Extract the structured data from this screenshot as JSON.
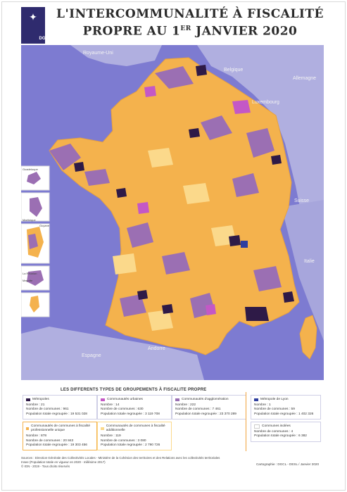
{
  "logo": {
    "text": "DGCL"
  },
  "title": {
    "line1": "L'INTERCOMMUNALITÉ À FISCALITÉ",
    "line2_a": "PROPRE AU 1",
    "line2_sup": "ER",
    "line2_b": " JANVIER 2020"
  },
  "map": {
    "colors": {
      "sea": "#7d7bd1",
      "foreign": "#b0afe0",
      "cc_unique": "#f4b24d",
      "cc_additionnelle": "#fbd98b",
      "ca": "#9b6fb3",
      "cu": "#c458c6",
      "metropole": "#2e1a47",
      "lyon": "#2f3f9f"
    },
    "countries": [
      "Royaume-Uni",
      "Belgique",
      "Allemagne",
      "Luxembourg",
      "Suisse",
      "Italie",
      "Espagne",
      "Andorre"
    ],
    "insets": [
      "Guadeloupe",
      "Martinique",
      "Guyane",
      "La Réunion",
      "Mayotte"
    ]
  },
  "legend": {
    "title": "LES DIFFERENTS TYPES DE GROUPEMENTS À FISCALITE PROPRE",
    "items": [
      {
        "name": "Métropoles",
        "l1": "Nombre : 21",
        "l2": "Nombre de communes : 961",
        "l3": "Population totale regroupée : 19 531 028"
      },
      {
        "name": "Communautés urbaines",
        "l1": "Nombre : 14",
        "l2": "Nombre de communes : 630",
        "l3": "Population totale regroupée : 3 119 708"
      },
      {
        "name": "Communautés d'agglomération",
        "l1": "Nombre : 222",
        "l2": "Nombre de communes : 7 461",
        "l3": "Population totale regroupée : 23 370 289"
      },
      {
        "name": "Métropole de Lyon",
        "l1": "Nombre : 1",
        "l2": "Nombre de communes : 59",
        "l3": "Population totale regroupée : 1 402 326"
      },
      {
        "name": "Communautés de communes à fiscalité professionnelle unique",
        "l1": "Nombre : 878",
        "l2": "Nombre de communes : 20 843",
        "l3": "Population totale regroupée : 19 303 456"
      },
      {
        "name": "Communautés de communes à fiscalité additionnelle",
        "l1": "Nombre : 119",
        "l2": "Nombre de communes : 3 080",
        "l3": "Population totale regroupée : 2 790 726"
      },
      {
        "name": "Communes isolées",
        "l1": "Nombre de communes : 4",
        "l2": "Population totale regroupée : 6 382",
        "l3": ""
      }
    ]
  },
  "sources": {
    "l1": "Sources : Direction Générale des Collectivités Locales - Ministère de la Cohésion des territoires et des Relations avec les collectivités territoriales",
    "l2": "Insee (Population totale en vigueur en 2020 - millésime 2017)",
    "l3": "© IGN - 2019 - Tous droits réservés"
  },
  "credit": "Cartographie : DGCL - DESL / Janvier 2020"
}
